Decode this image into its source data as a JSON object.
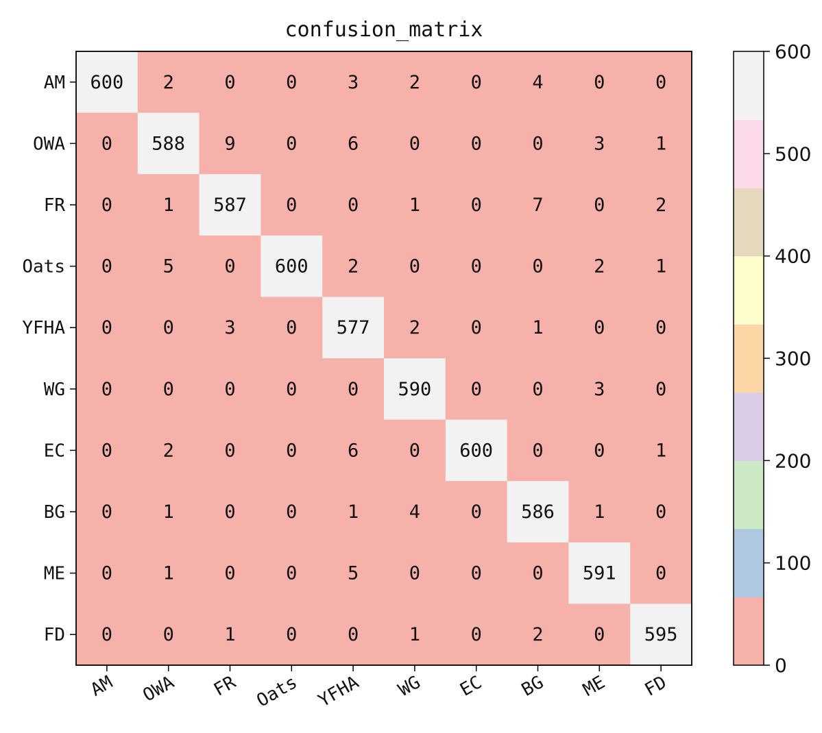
{
  "chart_data": {
    "type": "heatmap",
    "title": "confusion_matrix",
    "row_labels": [
      "AM",
      "OWA",
      "FR",
      "Oats",
      "YFHA",
      "WG",
      "EC",
      "BG",
      "ME",
      "FD"
    ],
    "col_labels": [
      "AM",
      "OWA",
      "FR",
      "Oats",
      "YFHA",
      "WG",
      "EC",
      "BG",
      "ME",
      "FD"
    ],
    "values": [
      [
        600,
        2,
        0,
        0,
        3,
        2,
        0,
        4,
        0,
        0
      ],
      [
        0,
        588,
        9,
        0,
        6,
        0,
        0,
        0,
        3,
        1
      ],
      [
        0,
        1,
        587,
        0,
        0,
        1,
        0,
        7,
        0,
        2
      ],
      [
        0,
        5,
        0,
        600,
        2,
        0,
        0,
        0,
        2,
        1
      ],
      [
        0,
        0,
        3,
        0,
        577,
        2,
        0,
        1,
        0,
        0
      ],
      [
        0,
        0,
        0,
        0,
        0,
        590,
        0,
        0,
        3,
        0
      ],
      [
        0,
        2,
        0,
        0,
        6,
        0,
        600,
        0,
        0,
        1
      ],
      [
        0,
        1,
        0,
        0,
        1,
        4,
        0,
        586,
        1,
        0
      ],
      [
        0,
        1,
        0,
        0,
        5,
        0,
        0,
        0,
        591,
        0
      ],
      [
        0,
        0,
        1,
        0,
        0,
        1,
        0,
        2,
        0,
        595
      ]
    ],
    "colorbar": {
      "range": [
        0,
        600
      ],
      "ticks": [
        "0",
        "100",
        "200",
        "300",
        "400",
        "500",
        "600"
      ],
      "colors": [
        "#f7b1ab",
        "#aec8e2",
        "#cce8c4",
        "#dbcce6",
        "#fcd6a5",
        "#fefecc",
        "#e5d8bd",
        "#fcdaec",
        "#f2f2f2"
      ]
    },
    "colormap": "Pastel1",
    "grid": false
  }
}
